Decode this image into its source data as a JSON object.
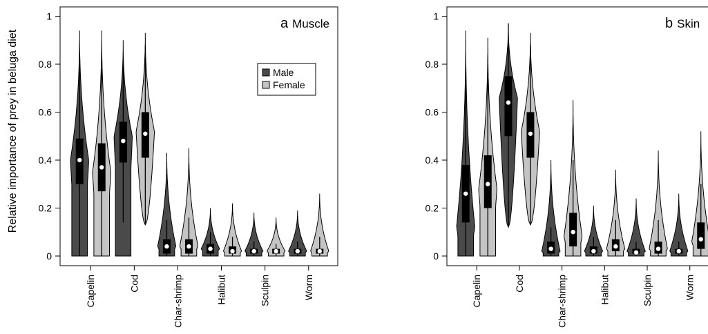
{
  "ylabel": "Relative importance of prey in beluga diet",
  "categories": [
    "Capelin",
    "Cod",
    "Char-shrimp",
    "Halibut",
    "Sculpin",
    "Worm"
  ],
  "series": [
    {
      "name": "Male",
      "color": "#4a4a4a"
    },
    {
      "name": "Female",
      "color": "#c4c4c4"
    }
  ],
  "chart_data": [
    {
      "type": "violin",
      "panel_letter": "a",
      "title": "Muscle",
      "ylabel": "Relative importance of prey in beluga diet",
      "ylim": [
        0,
        1
      ],
      "yticks": [
        "0",
        "0.2",
        "0.4",
        "0.6",
        "0.8",
        "1"
      ],
      "legend": {
        "position": "top-right",
        "entries": [
          "Male",
          "Female"
        ]
      },
      "categories": [
        "Capelin",
        "Cod",
        "Char-shrimp",
        "Halibut",
        "Sculpin",
        "Worm"
      ],
      "series": [
        {
          "name": "Male",
          "groups": [
            {
              "category": "Capelin",
              "min": 0.0,
              "q1": 0.3,
              "median": 0.4,
              "q3": 0.49,
              "max": 0.94,
              "mode": 0.4,
              "width": 0.7,
              "whisker_lo": 0.0,
              "whisker_hi": 0.8
            },
            {
              "category": "Cod",
              "min": 0.0,
              "q1": 0.39,
              "median": 0.48,
              "q3": 0.56,
              "max": 0.9,
              "mode": 0.5,
              "width": 0.7,
              "whisker_lo": 0.14,
              "whisker_hi": 0.8
            },
            {
              "category": "Char-shrimp",
              "min": 0.0,
              "q1": 0.01,
              "median": 0.04,
              "q3": 0.07,
              "max": 0.43,
              "mode": 0.04,
              "width": 0.7,
              "whisker_lo": 0.0,
              "whisker_hi": 0.15
            },
            {
              "category": "Halibut",
              "min": 0.0,
              "q1": 0.01,
              "median": 0.03,
              "q3": 0.05,
              "max": 0.2,
              "mode": 0.03,
              "width": 0.7,
              "whisker_lo": 0.0,
              "whisker_hi": 0.1
            },
            {
              "category": "Sculpin",
              "min": 0.0,
              "q1": 0.01,
              "median": 0.02,
              "q3": 0.03,
              "max": 0.18,
              "mode": 0.02,
              "width": 0.7,
              "whisker_lo": 0.0,
              "whisker_hi": 0.06
            },
            {
              "category": "Worm",
              "min": 0.0,
              "q1": 0.01,
              "median": 0.02,
              "q3": 0.03,
              "max": 0.19,
              "mode": 0.02,
              "width": 0.7,
              "whisker_lo": 0.0,
              "whisker_hi": 0.06
            }
          ]
        },
        {
          "name": "Female",
          "groups": [
            {
              "category": "Capelin",
              "min": 0.0,
              "q1": 0.27,
              "median": 0.37,
              "q3": 0.47,
              "max": 0.94,
              "mode": 0.35,
              "width": 0.7,
              "whisker_lo": 0.0,
              "whisker_hi": 0.78
            },
            {
              "category": "Cod",
              "min": 0.13,
              "q1": 0.41,
              "median": 0.51,
              "q3": 0.6,
              "max": 0.93,
              "mode": 0.52,
              "width": 0.7,
              "whisker_lo": 0.13,
              "whisker_hi": 0.88
            },
            {
              "category": "Char-shrimp",
              "min": 0.0,
              "q1": 0.01,
              "median": 0.04,
              "q3": 0.07,
              "max": 0.45,
              "mode": 0.04,
              "width": 0.7,
              "whisker_lo": 0.0,
              "whisker_hi": 0.16
            },
            {
              "category": "Halibut",
              "min": 0.0,
              "q1": 0.01,
              "median": 0.02,
              "q3": 0.04,
              "max": 0.22,
              "mode": 0.02,
              "width": 0.7,
              "whisker_lo": 0.0,
              "whisker_hi": 0.08
            },
            {
              "category": "Sculpin",
              "min": 0.0,
              "q1": 0.01,
              "median": 0.02,
              "q3": 0.03,
              "max": 0.16,
              "mode": 0.02,
              "width": 0.7,
              "whisker_lo": 0.0,
              "whisker_hi": 0.05
            },
            {
              "category": "Worm",
              "min": 0.0,
              "q1": 0.01,
              "median": 0.02,
              "q3": 0.03,
              "max": 0.26,
              "mode": 0.02,
              "width": 0.7,
              "whisker_lo": 0.0,
              "whisker_hi": 0.08
            }
          ]
        }
      ]
    },
    {
      "type": "violin",
      "panel_letter": "b",
      "title": "Skin",
      "ylabel": "",
      "ylim": [
        0,
        1
      ],
      "yticks": [
        "0",
        "0.2",
        "0.4",
        "0.6",
        "0.8",
        "1"
      ],
      "categories": [
        "Capelin",
        "Cod",
        "Char-shrimp",
        "Halibut",
        "Sculpin",
        "Worm"
      ],
      "series": [
        {
          "name": "Male",
          "groups": [
            {
              "category": "Capelin",
              "min": 0.0,
              "q1": 0.14,
              "median": 0.26,
              "q3": 0.38,
              "max": 0.94,
              "mode": 0.12,
              "width": 0.7,
              "whisker_lo": 0.0,
              "whisker_hi": 0.7
            },
            {
              "category": "Cod",
              "min": 0.12,
              "q1": 0.5,
              "median": 0.64,
              "q3": 0.75,
              "max": 0.97,
              "mode": 0.66,
              "width": 0.7,
              "whisker_lo": 0.12,
              "whisker_hi": 0.97
            },
            {
              "category": "Char-shrimp",
              "min": 0.0,
              "q1": 0.01,
              "median": 0.03,
              "q3": 0.06,
              "max": 0.4,
              "mode": 0.02,
              "width": 0.7,
              "whisker_lo": 0.0,
              "whisker_hi": 0.12
            },
            {
              "category": "Halibut",
              "min": 0.0,
              "q1": 0.01,
              "median": 0.02,
              "q3": 0.04,
              "max": 0.21,
              "mode": 0.02,
              "width": 0.7,
              "whisker_lo": 0.0,
              "whisker_hi": 0.08
            },
            {
              "category": "Sculpin",
              "min": 0.0,
              "q1": 0.01,
              "median": 0.015,
              "q3": 0.03,
              "max": 0.24,
              "mode": 0.02,
              "width": 0.7,
              "whisker_lo": 0.0,
              "whisker_hi": 0.06
            },
            {
              "category": "Worm",
              "min": 0.0,
              "q1": 0.01,
              "median": 0.02,
              "q3": 0.03,
              "max": 0.26,
              "mode": 0.02,
              "width": 0.7,
              "whisker_lo": 0.0,
              "whisker_hi": 0.06
            }
          ]
        },
        {
          "name": "Female",
          "groups": [
            {
              "category": "Capelin",
              "min": 0.0,
              "q1": 0.2,
              "median": 0.3,
              "q3": 0.42,
              "max": 0.91,
              "mode": 0.28,
              "width": 0.7,
              "whisker_lo": 0.0,
              "whisker_hi": 0.74
            },
            {
              "category": "Cod",
              "min": 0.13,
              "q1": 0.41,
              "median": 0.51,
              "q3": 0.6,
              "max": 0.93,
              "mode": 0.52,
              "width": 0.7,
              "whisker_lo": 0.13,
              "whisker_hi": 0.88
            },
            {
              "category": "Char-shrimp",
              "min": 0.0,
              "q1": 0.04,
              "median": 0.1,
              "q3": 0.18,
              "max": 0.65,
              "mode": 0.08,
              "width": 0.7,
              "whisker_lo": 0.0,
              "whisker_hi": 0.4
            },
            {
              "category": "Halibut",
              "min": 0.0,
              "q1": 0.02,
              "median": 0.04,
              "q3": 0.07,
              "max": 0.36,
              "mode": 0.03,
              "width": 0.7,
              "whisker_lo": 0.0,
              "whisker_hi": 0.15
            },
            {
              "category": "Sculpin",
              "min": 0.0,
              "q1": 0.01,
              "median": 0.03,
              "q3": 0.06,
              "max": 0.44,
              "mode": 0.03,
              "width": 0.7,
              "whisker_lo": 0.0,
              "whisker_hi": 0.15
            },
            {
              "category": "Worm",
              "min": 0.0,
              "q1": 0.03,
              "median": 0.07,
              "q3": 0.14,
              "max": 0.52,
              "mode": 0.06,
              "width": 0.7,
              "whisker_lo": 0.0,
              "whisker_hi": 0.3
            }
          ]
        }
      ]
    }
  ]
}
